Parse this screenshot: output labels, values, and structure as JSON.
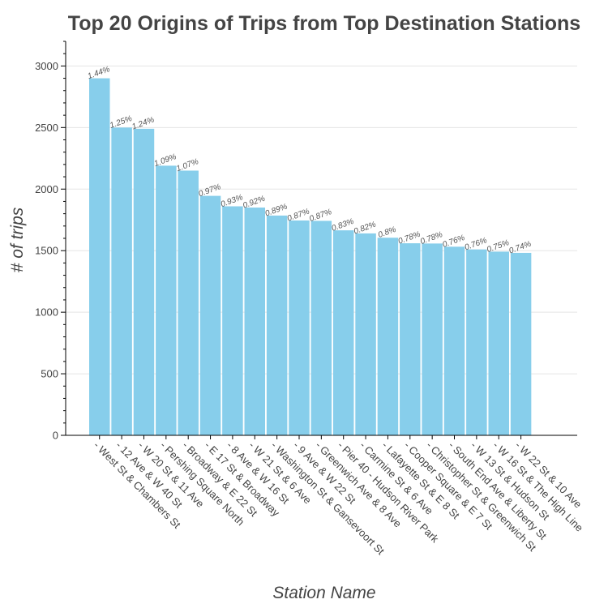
{
  "chart_data": {
    "type": "bar",
    "title": "Top 20 Origins of Trips from Top Destination Stations",
    "xlabel": "Station Name",
    "ylabel": "# of trips",
    "categories": [
      "West St & Chambers St",
      "12 Ave & W 40 St",
      "W 20 St & 11 Ave",
      "Pershing Square North",
      "Broadway & E 22 St",
      "E 17 St & Broadway",
      "8 Ave & W 16 St",
      "W 21 St & 6 Ave",
      "Washington St & Gansevoort St",
      "9 Ave & W 22 St",
      "Greenwich Ave & 8 Ave",
      "Pier 40 - Hudson River Park",
      "Carmine St & 6 Ave",
      "Lafayette St & E 8 St",
      "Cooper Square & E 7 St",
      "Christopher St & Greenwich St",
      "South End Ave & Liberty St",
      "W 13 St & Hudson St",
      "W 16 St & The High Line",
      "W 22 St & 10 Ave"
    ],
    "values": [
      2900,
      2500,
      2490,
      2190,
      2150,
      1945,
      1860,
      1850,
      1785,
      1745,
      1742,
      1665,
      1640,
      1605,
      1560,
      1558,
      1532,
      1510,
      1492,
      1482
    ],
    "data_labels": [
      "1.44%",
      "1.25%",
      "1.24%",
      "1.09%",
      "1.07%",
      "0.97%",
      "0.93%",
      "0.92%",
      "0.89%",
      "0.87%",
      "0.87%",
      "0.83%",
      "0.82%",
      "0.8%",
      "0.78%",
      "0.78%",
      "0.76%",
      "0.76%",
      "0.75%",
      "0.74%"
    ],
    "yticks": [
      0,
      500,
      1000,
      1500,
      2000,
      2500,
      3000
    ],
    "ylim": [
      0,
      3200
    ],
    "grid": true,
    "bar_color": "#87ceeb",
    "legend": false
  }
}
